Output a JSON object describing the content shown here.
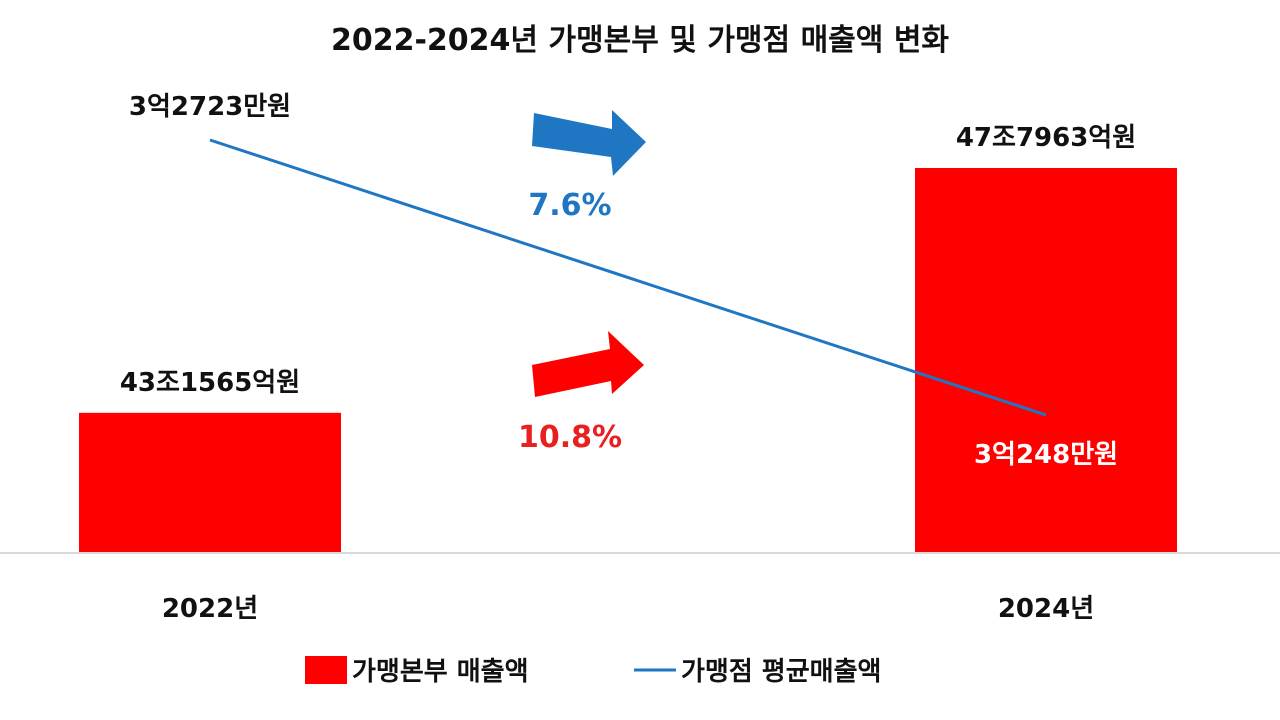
{
  "chart_data": {
    "type": "bar",
    "title": "2022-2024년 가맹본부 및 가맹점 매출액 변화",
    "categories": [
      "2022년",
      "2024년"
    ],
    "series": [
      {
        "name": "가맹본부 매출액",
        "kind": "bar",
        "color": "#ff0000",
        "values": [
          431565,
          477963
        ],
        "labels": [
          "43조1565억원",
          "47조7963억원"
        ]
      },
      {
        "name": "가맹점 평균매출액",
        "kind": "line",
        "color": "#1f77c4",
        "values": [
          32723,
          30248
        ],
        "labels": [
          "3억2723만원",
          "3억248만원"
        ]
      }
    ],
    "annotations": [
      {
        "text": "7.6%",
        "color": "#1f77c4",
        "arrow_color": "#1f77c4",
        "refers_to": "가맹점 평균매출액"
      },
      {
        "text": "10.8%",
        "color": "#e82020",
        "arrow_color": "#ff0000",
        "refers_to": "가맹본부 매출액"
      }
    ],
    "grid": false,
    "legend": "bottom"
  }
}
